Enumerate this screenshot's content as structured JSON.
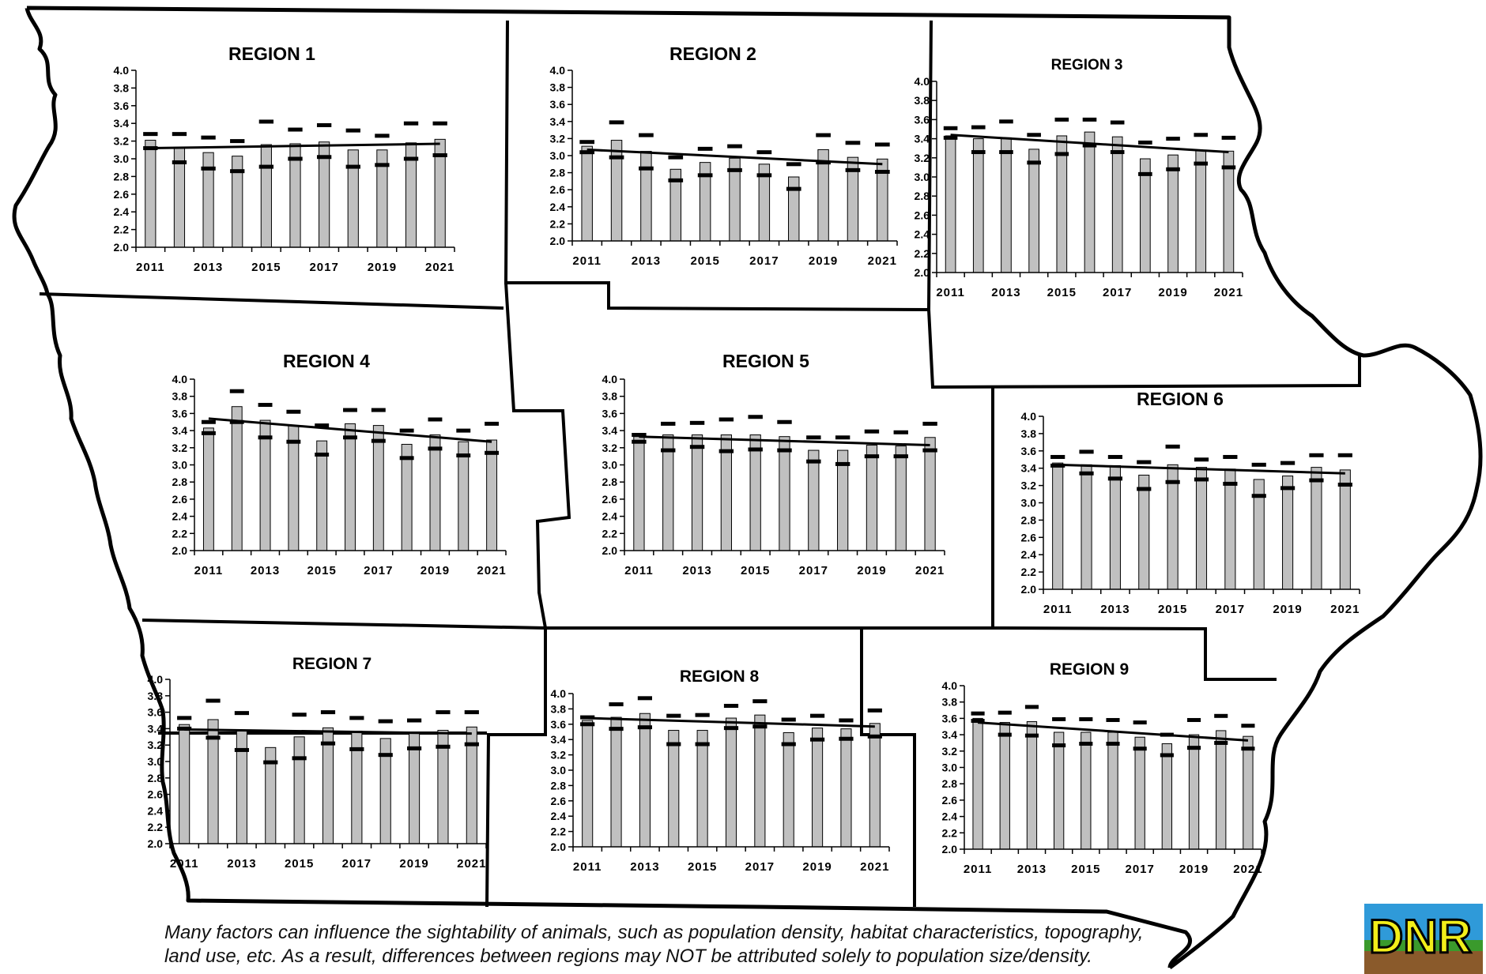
{
  "footnote": "Many factors can influence the sightability of animals, such as population density, habitat characteristics, topography, land use, etc.  As a result, differences between regions may NOT be attributed solely to population size/density.",
  "logo_text": "DNR",
  "colors": {
    "bar": "#c0c0c0",
    "bar_outline": "#000000",
    "border": "#000000",
    "logo_text": "#f2ee1a",
    "logo_green": "#3a9a2c",
    "logo_brown": "#8a5a2b",
    "logo_blue": "#2f9ad9"
  },
  "chart_data": [
    {
      "type": "bar",
      "title": "REGION 1",
      "categories": [
        "2011",
        "2012",
        "2013",
        "2014",
        "2015",
        "2016",
        "2017",
        "2018",
        "2019",
        "2020",
        "2021"
      ],
      "x_tick_labels": [
        "2011",
        "2013",
        "2015",
        "2017",
        "2019",
        "2021"
      ],
      "y_tick_labels": [
        "4.0",
        "3.8",
        "3.6",
        "3.4",
        "3.2",
        "3.0",
        "2.8",
        "2.6",
        "2.4",
        "2.2",
        "2.0"
      ],
      "ylim": [
        2.0,
        4.0
      ],
      "values": [
        3.21,
        3.12,
        3.07,
        3.03,
        3.16,
        3.17,
        3.19,
        3.1,
        3.1,
        3.18,
        3.22
      ],
      "upper": [
        3.28,
        3.28,
        3.24,
        3.2,
        3.42,
        3.33,
        3.38,
        3.32,
        3.26,
        3.4,
        3.4
      ],
      "lower": [
        3.12,
        2.96,
        2.89,
        2.86,
        2.91,
        3.0,
        3.02,
        2.91,
        2.93,
        3.0,
        3.04
      ],
      "trend": [
        3.12,
        3.17
      ]
    },
    {
      "type": "bar",
      "title": "REGION 2",
      "categories": [
        "2011",
        "2012",
        "2013",
        "2014",
        "2015",
        "2016",
        "2017",
        "2018",
        "2019",
        "2020",
        "2021"
      ],
      "x_tick_labels": [
        "2011",
        "2013",
        "2015",
        "2017",
        "2019",
        "2021"
      ],
      "y_tick_labels": [
        "4.0",
        "3.8",
        "3.6",
        "3.4",
        "3.2",
        "3.0",
        "2.8",
        "2.6",
        "2.4",
        "2.2",
        "2.0"
      ],
      "ylim": [
        2.0,
        4.0
      ],
      "values": [
        3.11,
        3.18,
        3.05,
        2.84,
        2.92,
        2.97,
        2.9,
        2.75,
        3.07,
        2.98,
        2.96
      ],
      "upper": [
        3.16,
        3.39,
        3.24,
        2.98,
        3.08,
        3.11,
        3.04,
        2.9,
        3.24,
        3.15,
        3.13
      ],
      "lower": [
        3.04,
        2.98,
        2.85,
        2.71,
        2.77,
        2.83,
        2.77,
        2.61,
        2.92,
        2.83,
        2.81
      ],
      "trend": [
        3.07,
        2.9
      ]
    },
    {
      "type": "bar",
      "title": "REGION 3",
      "categories": [
        "2011",
        "2012",
        "2013",
        "2014",
        "2015",
        "2016",
        "2017",
        "2018",
        "2019",
        "2020",
        "2021"
      ],
      "x_tick_labels": [
        "2011",
        "2013",
        "2015",
        "2017",
        "2019",
        "2021"
      ],
      "y_tick_labels": [
        "4.0",
        "3.8",
        "3.6",
        "3.4",
        "3.2",
        "3.0",
        "2.8",
        "2.6",
        "2.4",
        "2.2",
        "2.0"
      ],
      "ylim": [
        2.0,
        4.0
      ],
      "values": [
        3.43,
        3.4,
        3.41,
        3.29,
        3.43,
        3.47,
        3.42,
        3.19,
        3.23,
        3.28,
        3.27
      ],
      "upper": [
        3.51,
        3.52,
        3.58,
        3.44,
        3.6,
        3.6,
        3.57,
        3.36,
        3.4,
        3.44,
        3.41
      ],
      "lower": [
        3.41,
        3.26,
        3.26,
        3.15,
        3.24,
        3.33,
        3.26,
        3.03,
        3.08,
        3.14,
        3.1
      ],
      "trend": [
        3.44,
        3.26
      ]
    },
    {
      "type": "bar",
      "title": "REGION 4",
      "categories": [
        "2011",
        "2012",
        "2013",
        "2014",
        "2015",
        "2016",
        "2017",
        "2018",
        "2019",
        "2020",
        "2021"
      ],
      "x_tick_labels": [
        "2011",
        "2013",
        "2015",
        "2017",
        "2019",
        "2021"
      ],
      "y_tick_labels": [
        "4.0",
        "3.8",
        "3.6",
        "3.4",
        "3.2",
        "3.0",
        "2.8",
        "2.6",
        "2.4",
        "2.2",
        "2.0"
      ],
      "ylim": [
        2.0,
        4.0
      ],
      "values": [
        3.43,
        3.68,
        3.52,
        3.46,
        3.28,
        3.48,
        3.46,
        3.24,
        3.35,
        3.27,
        3.29
      ],
      "upper": [
        3.5,
        3.86,
        3.7,
        3.62,
        3.46,
        3.64,
        3.64,
        3.4,
        3.53,
        3.4,
        3.48
      ],
      "lower": [
        3.37,
        3.5,
        3.32,
        3.27,
        3.12,
        3.32,
        3.28,
        3.08,
        3.19,
        3.11,
        3.14
      ],
      "trend": [
        3.54,
        3.27
      ]
    },
    {
      "type": "bar",
      "title": "REGION 5",
      "categories": [
        "2011",
        "2012",
        "2013",
        "2014",
        "2015",
        "2016",
        "2017",
        "2018",
        "2019",
        "2020",
        "2021"
      ],
      "x_tick_labels": [
        "2011",
        "2013",
        "2015",
        "2017",
        "2019",
        "2021"
      ],
      "y_tick_labels": [
        "4.0",
        "3.8",
        "3.6",
        "3.4",
        "3.2",
        "3.0",
        "2.8",
        "2.6",
        "2.4",
        "2.2",
        "2.0"
      ],
      "ylim": [
        2.0,
        4.0
      ],
      "values": [
        3.33,
        3.35,
        3.35,
        3.35,
        3.35,
        3.33,
        3.17,
        3.17,
        3.23,
        3.22,
        3.32
      ],
      "upper": [
        3.35,
        3.48,
        3.49,
        3.53,
        3.56,
        3.5,
        3.32,
        3.32,
        3.39,
        3.38,
        3.48
      ],
      "lower": [
        3.27,
        3.17,
        3.21,
        3.16,
        3.18,
        3.17,
        3.04,
        3.01,
        3.1,
        3.1,
        3.17
      ],
      "trend": [
        3.33,
        3.23
      ]
    },
    {
      "type": "bar",
      "title": "REGION 6",
      "categories": [
        "2011",
        "2012",
        "2013",
        "2014",
        "2015",
        "2016",
        "2017",
        "2018",
        "2019",
        "2020",
        "2021"
      ],
      "x_tick_labels": [
        "2011",
        "2013",
        "2015",
        "2017",
        "2019",
        "2021"
      ],
      "y_tick_labels": [
        "4.0",
        "3.8",
        "3.6",
        "3.4",
        "3.2",
        "3.0",
        "2.8",
        "2.6",
        "2.4",
        "2.2",
        "2.0"
      ],
      "ylim": [
        2.0,
        4.0
      ],
      "values": [
        3.46,
        3.44,
        3.43,
        3.32,
        3.44,
        3.41,
        3.39,
        3.27,
        3.31,
        3.41,
        3.38
      ],
      "upper": [
        3.53,
        3.59,
        3.53,
        3.47,
        3.65,
        3.5,
        3.53,
        3.44,
        3.46,
        3.55,
        3.55
      ],
      "lower": [
        3.43,
        3.34,
        3.28,
        3.16,
        3.24,
        3.27,
        3.22,
        3.08,
        3.17,
        3.26,
        3.21
      ],
      "trend": [
        3.44,
        3.34
      ]
    },
    {
      "type": "bar",
      "title": "REGION 7",
      "categories": [
        "2011",
        "2012",
        "2013",
        "2014",
        "2015",
        "2016",
        "2017",
        "2018",
        "2019",
        "2020",
        "2021"
      ],
      "x_tick_labels": [
        "2011",
        "2013",
        "2015",
        "2017",
        "2019",
        "2021"
      ],
      "y_tick_labels": [
        "4.0",
        "3.8",
        "3.6",
        "3.4",
        "3.2",
        "3.0",
        "2.8",
        "2.6",
        "2.4",
        "2.2",
        "2.0"
      ],
      "ylim": [
        2.0,
        4.0
      ],
      "values": [
        3.45,
        3.51,
        3.37,
        3.17,
        3.3,
        3.41,
        3.37,
        3.28,
        3.34,
        3.38,
        3.42
      ],
      "upper": [
        3.53,
        3.74,
        3.59,
        3.36,
        3.57,
        3.6,
        3.53,
        3.49,
        3.5,
        3.6,
        3.6
      ],
      "lower": [
        3.4,
        3.29,
        3.14,
        2.99,
        3.04,
        3.22,
        3.15,
        3.08,
        3.16,
        3.18,
        3.21
      ],
      "trend": [
        3.39,
        3.34
      ]
    },
    {
      "type": "bar",
      "title": "REGION 8",
      "categories": [
        "2011",
        "2012",
        "2013",
        "2014",
        "2015",
        "2016",
        "2017",
        "2018",
        "2019",
        "2020",
        "2021"
      ],
      "x_tick_labels": [
        "2011",
        "2013",
        "2015",
        "2017",
        "2019",
        "2021"
      ],
      "y_tick_labels": [
        "4.0",
        "3.8",
        "3.6",
        "3.4",
        "3.2",
        "3.0",
        "2.8",
        "2.6",
        "2.4",
        "2.2",
        "2.0"
      ],
      "ylim": [
        2.0,
        4.0
      ],
      "values": [
        3.65,
        3.69,
        3.74,
        3.52,
        3.52,
        3.68,
        3.72,
        3.49,
        3.55,
        3.54,
        3.61
      ],
      "upper": [
        3.69,
        3.86,
        3.94,
        3.71,
        3.72,
        3.84,
        3.9,
        3.66,
        3.71,
        3.65,
        3.78
      ],
      "lower": [
        3.6,
        3.54,
        3.56,
        3.34,
        3.34,
        3.55,
        3.57,
        3.34,
        3.4,
        3.41,
        3.44
      ],
      "trend": [
        3.68,
        3.57
      ]
    },
    {
      "type": "bar",
      "title": "REGION 9",
      "categories": [
        "2011",
        "2012",
        "2013",
        "2014",
        "2015",
        "2016",
        "2017",
        "2018",
        "2019",
        "2020",
        "2021"
      ],
      "x_tick_labels": [
        "2011",
        "2013",
        "2015",
        "2017",
        "2019",
        "2021"
      ],
      "y_tick_labels": [
        "4.0",
        "3.8",
        "3.6",
        "3.4",
        "3.2",
        "3.0",
        "2.8",
        "2.6",
        "2.4",
        "2.2",
        "2.0"
      ],
      "ylim": [
        2.0,
        4.0
      ],
      "values": [
        3.6,
        3.55,
        3.56,
        3.43,
        3.43,
        3.43,
        3.37,
        3.29,
        3.4,
        3.45,
        3.38
      ],
      "upper": [
        3.66,
        3.67,
        3.74,
        3.59,
        3.59,
        3.58,
        3.55,
        3.4,
        3.58,
        3.63,
        3.51
      ],
      "lower": [
        3.57,
        3.4,
        3.39,
        3.27,
        3.29,
        3.29,
        3.23,
        3.15,
        3.24,
        3.3,
        3.23
      ],
      "trend": [
        3.55,
        3.33
      ]
    }
  ]
}
